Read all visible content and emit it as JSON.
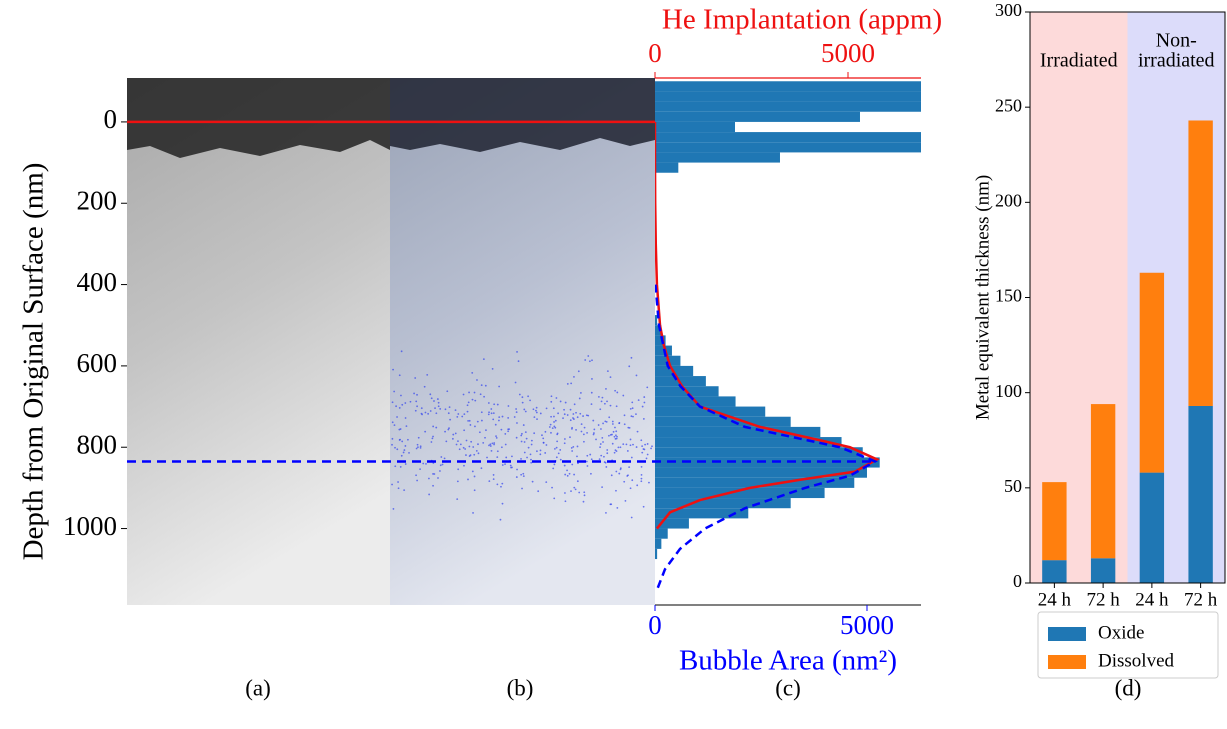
{
  "panel_labels": [
    "(a)",
    "(b)",
    "(c)",
    "(d)"
  ],
  "chart_data": [
    {
      "type": "histogram",
      "orientation": "horizontal",
      "ylabel": "Depth from Original Surface (nm)",
      "ylim": [
        -108,
        1188
      ],
      "y_inverted": true,
      "yticks": [
        0,
        200,
        400,
        600,
        800,
        1000
      ],
      "xlabel": "Bubble Area (nm²)",
      "xlim": [
        0,
        6274
      ],
      "xticks": [
        0,
        5000
      ],
      "xcolor": "#0000ff",
      "x2label": "He Implantation (appm)",
      "x2lim": [
        0,
        6891
      ],
      "x2ticks": [
        0,
        5000
      ],
      "x2color": "#ee1111",
      "color": "#1f77b4",
      "bins": [
        -100,
        -75,
        -50,
        -25,
        0,
        25,
        50,
        75,
        100,
        125,
        150,
        175,
        200,
        225,
        250,
        275,
        300,
        325,
        350,
        375,
        400,
        425,
        450,
        475,
        500,
        525,
        550,
        575,
        600,
        625,
        650,
        675,
        700,
        725,
        750,
        775,
        800,
        825,
        850,
        875,
        900,
        925,
        950,
        975,
        1000,
        1025,
        1050,
        1075,
        1100
      ],
      "counts": [
        6300,
        6300,
        6300,
        4835,
        1887,
        6300,
        6300,
        2948,
        550,
        0,
        0,
        0,
        0,
        0,
        0,
        0,
        0,
        0,
        0,
        0,
        0,
        0,
        0,
        50,
        150,
        250,
        400,
        600,
        900,
        1200,
        1500,
        1900,
        2600,
        3200,
        3900,
        4400,
        4900,
        5300,
        5000,
        4700,
        4000,
        3200,
        2200,
        800,
        300,
        150,
        50,
        0
      ],
      "curves": [
        {
          "axis": "x2",
          "color": "#ee1111",
          "dashed": false,
          "y": [
            0,
            100,
            200,
            300,
            400,
            500,
            550,
            600,
            650,
            700,
            750,
            780,
            800,
            830,
            860,
            880,
            900,
            930,
            960,
            1000
          ],
          "values": [
            0,
            0,
            5,
            20,
            50,
            130,
            230,
            390,
            700,
            1166,
            2720,
            4145,
            5050,
            5750,
            5180,
            3760,
            2460,
            1166,
            390,
            50
          ]
        },
        {
          "axis": "x",
          "color": "#0000ff",
          "dashed": true,
          "y": [
            400,
            500,
            600,
            650,
            700,
            750,
            800,
            835,
            870,
            900,
            950,
            1000,
            1050,
            1100,
            1150
          ],
          "values": [
            10,
            94,
            300,
            600,
            1060,
            2120,
            4360,
            5190,
            4600,
            3540,
            2120,
            1180,
            590,
            236,
            50
          ]
        }
      ],
      "hlines": [
        {
          "value": 0,
          "color": "#ee1111",
          "dashed": false
        },
        {
          "value": 835,
          "color": "#0000ff",
          "dashed": true
        }
      ]
    },
    {
      "type": "bar",
      "stacked": true,
      "ylabel": "Metal equivalent thickness (nm)",
      "ylim": [
        0,
        300
      ],
      "yticks": [
        0,
        50,
        100,
        150,
        200,
        250,
        300
      ],
      "categories": [
        "24 h",
        "72 h",
        "24 h",
        "72 h"
      ],
      "series": [
        {
          "name": "Oxide",
          "color": "#1f77b4",
          "values": [
            12,
            13,
            58,
            93
          ]
        },
        {
          "name": "Dissolved",
          "color": "#ff7f0e",
          "values": [
            41,
            81,
            105,
            150
          ]
        }
      ],
      "groups": [
        {
          "lines": [
            "Irradiated"
          ],
          "color": "#fddada",
          "span": [
            0,
            1
          ]
        },
        {
          "lines": [
            "Non-",
            "irradiated"
          ],
          "color": "#dcdcfa",
          "span": [
            2,
            3
          ]
        }
      ],
      "legend": "below"
    }
  ]
}
